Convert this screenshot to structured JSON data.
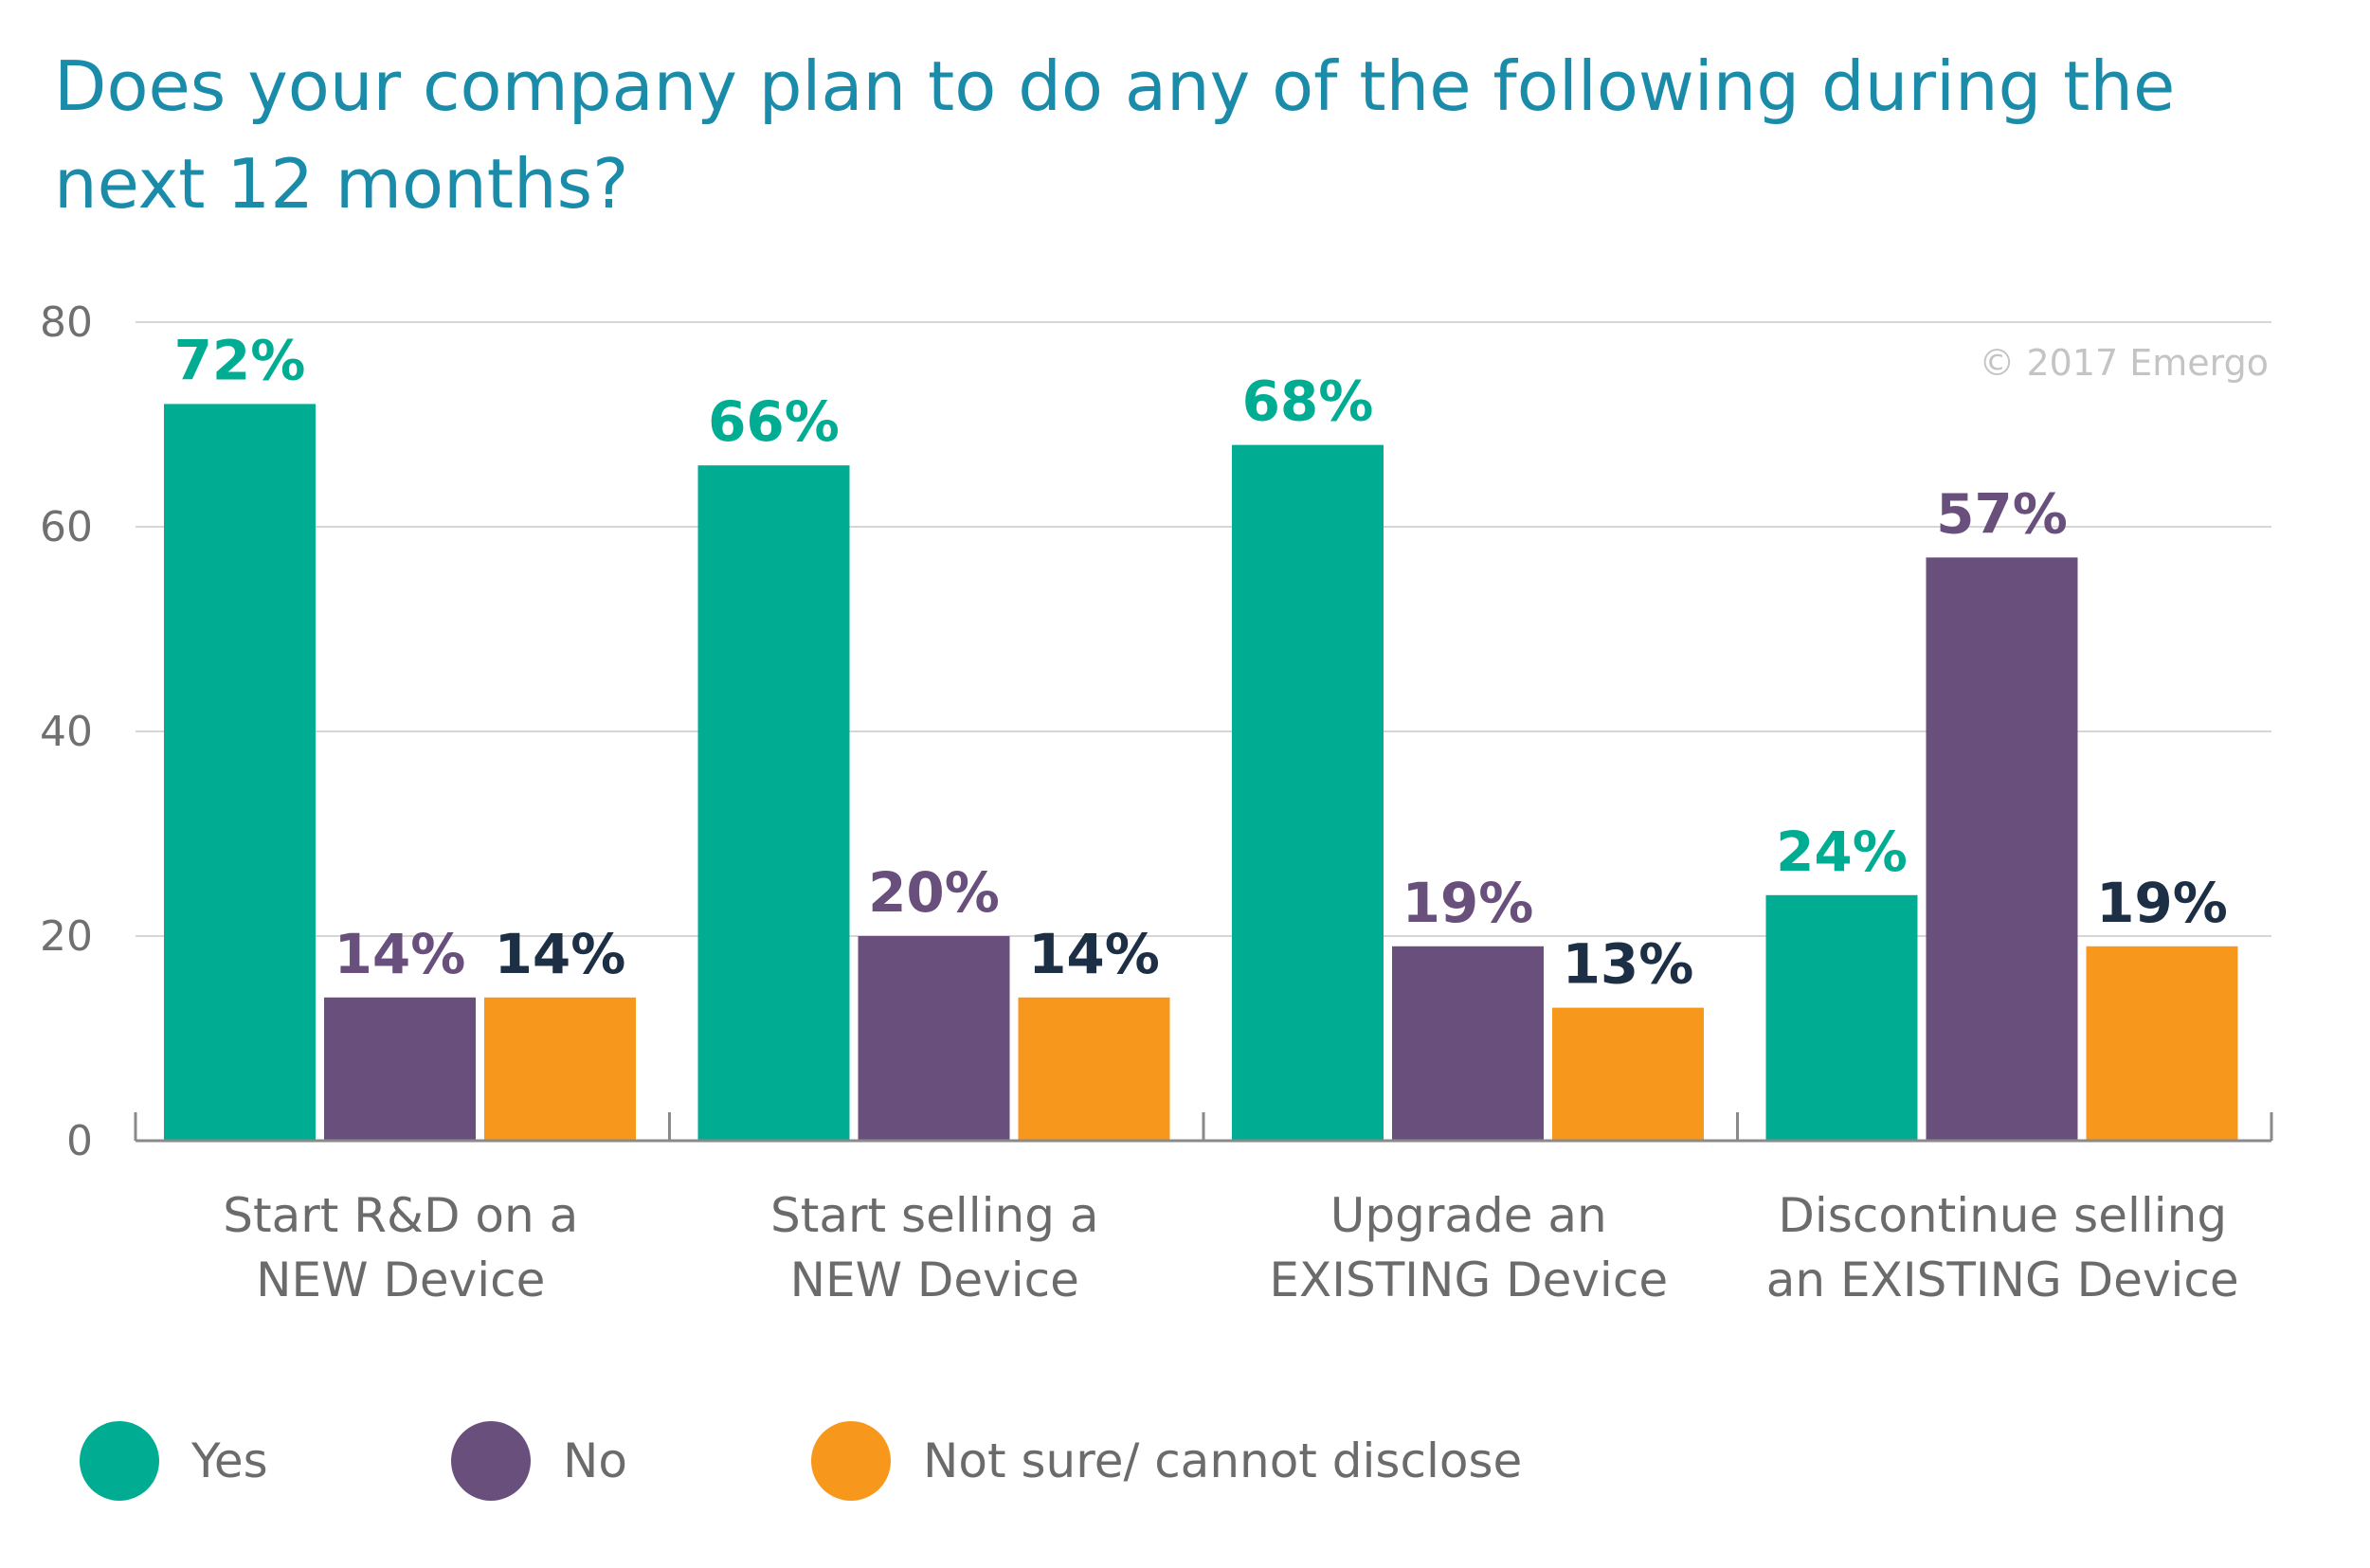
{
  "title": "Does your company plan to do any of the following during the next 12 months?",
  "copyright": "© 2017 Emergo",
  "colors": {
    "Yes": "#00ad92",
    "No": "#694f7c",
    "Not sure/ cannot disclose": "#f7981d"
  },
  "label_colors": {
    "Yes": "#00ad92",
    "No": "#694f7c",
    "Not sure/ cannot disclose": "#1c2f45"
  },
  "chart_data": {
    "type": "bar",
    "title": "Does your company plan to do any of the following during the next 12 months?",
    "categories": [
      [
        "Start R&D on a",
        "NEW Device"
      ],
      [
        "Start selling a",
        "NEW Device"
      ],
      [
        "Upgrade an",
        "EXISTING Device"
      ],
      [
        "Discontinue selling",
        "an EXISTING Device"
      ]
    ],
    "series": [
      {
        "name": "Yes",
        "values": [
          72,
          66,
          68,
          24
        ],
        "labels": [
          "72%",
          "66%",
          "68%",
          "24%"
        ]
      },
      {
        "name": "No",
        "values": [
          14,
          20,
          19,
          57
        ],
        "labels": [
          "14%",
          "20%",
          "19%",
          "57%"
        ]
      },
      {
        "name": "Not sure/ cannot disclose",
        "values": [
          14,
          14,
          13,
          19
        ],
        "labels": [
          "14%",
          "14%",
          "13%",
          "19%"
        ]
      }
    ],
    "ylim": [
      0,
      80
    ],
    "yticks": [
      0,
      20,
      40,
      60,
      80
    ],
    "ytick_labels": [
      "0",
      "20",
      "40",
      "60",
      "80"
    ],
    "grid": true,
    "legend_position": "bottom"
  },
  "legend": {
    "items": [
      {
        "label": "Yes",
        "color": "#00ad92"
      },
      {
        "label": "No",
        "color": "#694f7c"
      },
      {
        "label": "Not sure/ cannot disclose",
        "color": "#f7981d"
      }
    ]
  }
}
